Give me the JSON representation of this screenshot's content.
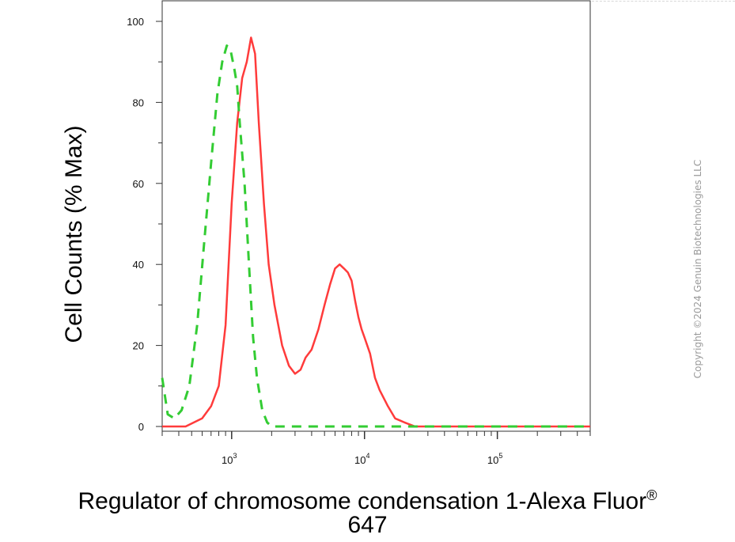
{
  "chart_data": {
    "type": "line",
    "xlabel_line1": "Regulator of chromosome condensation 1-Alexa Fluor",
    "xlabel_sup": "®",
    "xlabel_line2": "647",
    "ylabel": "Cell Counts (% Max)",
    "x_scale": "log",
    "xlim": [
      300,
      500000
    ],
    "ylim": [
      0,
      100
    ],
    "y_ticks": [
      "0",
      "20",
      "40",
      "60",
      "80",
      "100"
    ],
    "x_ticks": [
      {
        "value": 1000,
        "base": "10",
        "exp": "3"
      },
      {
        "value": 10000,
        "base": "10",
        "exp": "4"
      },
      {
        "value": 100000,
        "base": "10",
        "exp": "5"
      }
    ],
    "grid": false,
    "series": [
      {
        "style": "solid",
        "color": "#ff3b3b",
        "x": [
          300,
          450,
          600,
          700,
          800,
          900,
          1000,
          1100,
          1200,
          1300,
          1400,
          1500,
          1600,
          1750,
          1900,
          2100,
          2400,
          2700,
          3000,
          3300,
          3600,
          4000,
          4500,
          5000,
          5500,
          6000,
          6500,
          7000,
          7500,
          8000,
          8500,
          9000,
          9500,
          10000,
          11000,
          12000,
          13000,
          15000,
          17000,
          20000,
          24000,
          30000,
          40000,
          60000,
          100000,
          200000,
          500000
        ],
        "y": [
          0,
          0,
          2,
          5,
          10,
          25,
          55,
          75,
          86,
          90,
          96,
          92,
          75,
          55,
          40,
          30,
          20,
          15,
          13,
          14,
          17,
          19,
          24,
          30,
          35,
          39,
          40,
          39,
          38,
          36,
          31,
          27,
          24,
          22,
          18,
          12,
          9,
          5,
          2,
          1,
          0,
          0,
          0,
          0,
          0,
          0,
          0
        ]
      },
      {
        "style": "dashed",
        "color": "#33cc33",
        "x": [
          300,
          330,
          370,
          420,
          480,
          550,
          620,
          700,
          780,
          850,
          920,
          980,
          1050,
          1100,
          1150,
          1250,
          1350,
          1450,
          1550,
          1700,
          1850,
          2000,
          2200,
          2500,
          3000,
          4000,
          6000,
          10000,
          20000,
          50000,
          100000,
          200000,
          500000
        ],
        "y": [
          12,
          3,
          2,
          4,
          10,
          25,
          45,
          65,
          82,
          90,
          94,
          93,
          88,
          84,
          75,
          60,
          40,
          22,
          12,
          4,
          1,
          0,
          0,
          0,
          0,
          0,
          0,
          0,
          0,
          0,
          0,
          0,
          0
        ]
      }
    ]
  },
  "watermark": "Copyright ©2024 Genuin Biotechnologies LLC"
}
